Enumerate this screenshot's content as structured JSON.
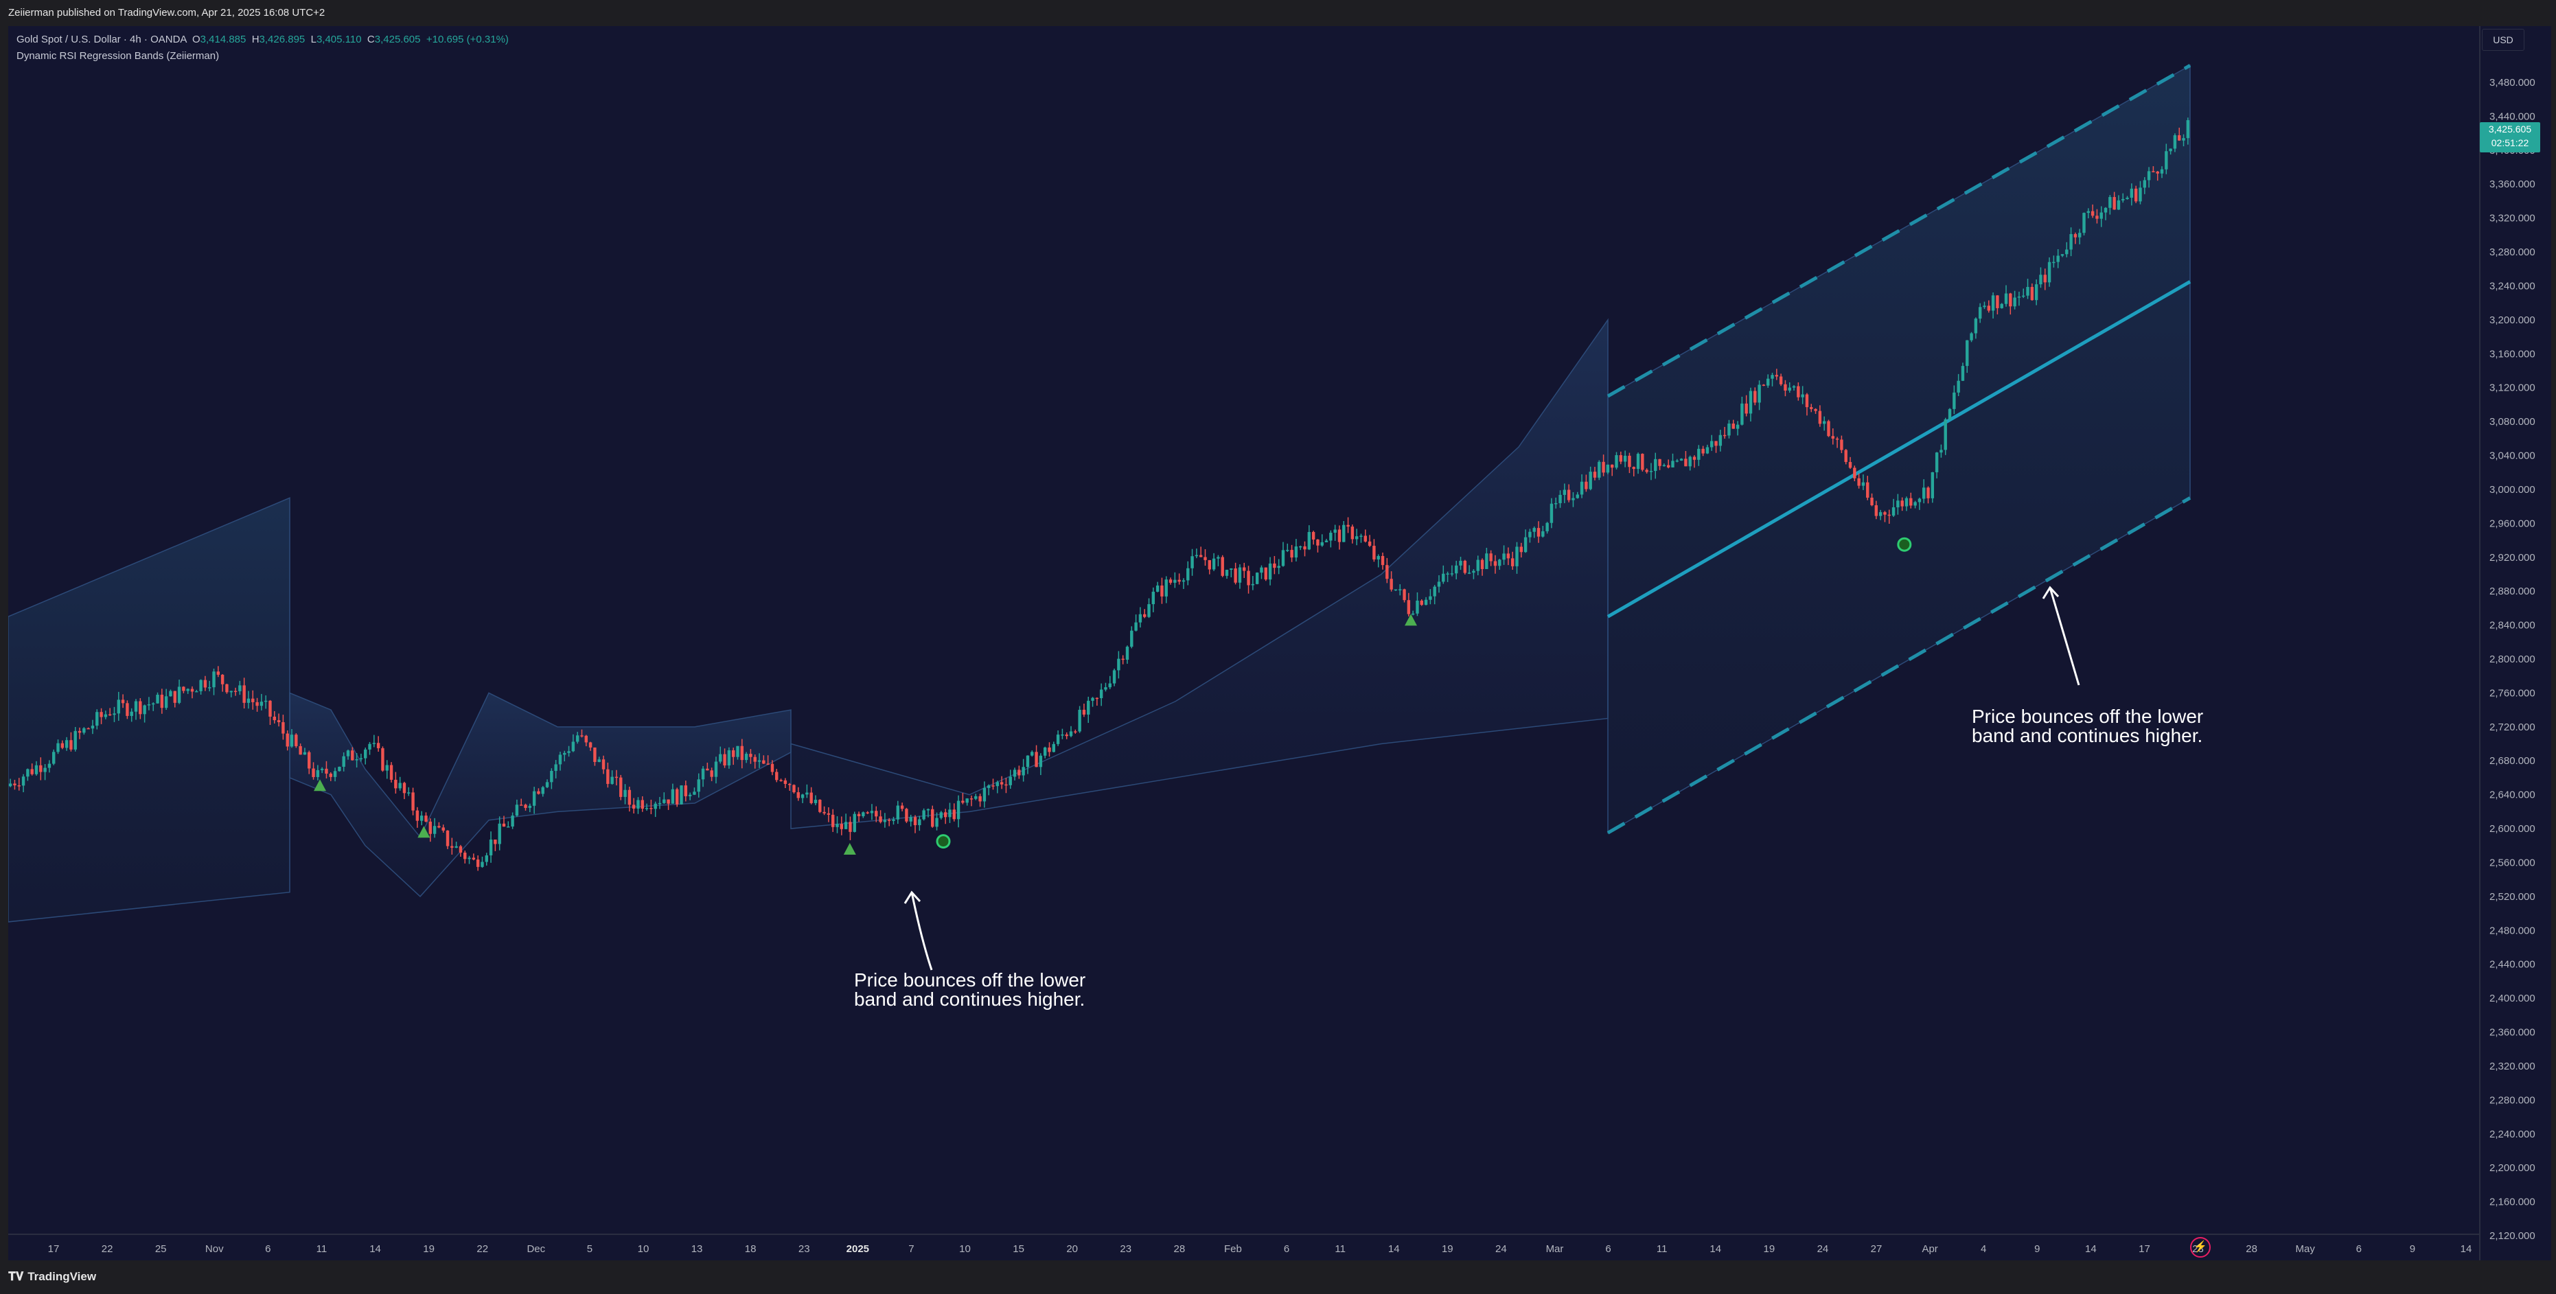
{
  "header": {
    "publish_info": "Zeiierman published on TradingView.com, Apr 21, 2025 16:08 UTC+2"
  },
  "legend": {
    "symbol": "Gold Spot / U.S. Dollar · 4h · OANDA",
    "o_label": "O",
    "o_value": "3,414.885",
    "h_label": "H",
    "h_value": "3,426.895",
    "l_label": "L",
    "l_value": "3,405.110",
    "c_label": "C",
    "c_value": "3,425.605",
    "change": "+10.695 (+0.31%)",
    "indicator": "Dynamic RSI Regression Bands (Zeiierman)"
  },
  "price_axis": {
    "currency": "USD",
    "labels": [
      "3,480.000",
      "3,440.000",
      "3,400.000",
      "3,360.000",
      "3,320.000",
      "3,280.000",
      "3,240.000",
      "3,200.000",
      "3,160.000",
      "3,120.000",
      "3,080.000",
      "3,040.000",
      "3,000.000",
      "2,960.000",
      "2,920.000",
      "2,880.000",
      "2,840.000",
      "2,800.000",
      "2,760.000",
      "2,720.000",
      "2,680.000",
      "2,640.000",
      "2,600.000",
      "2,560.000",
      "2,520.000",
      "2,480.000",
      "2,440.000",
      "2,400.000",
      "2,360.000",
      "2,320.000",
      "2,280.000",
      "2,240.000",
      "2,200.000",
      "2,160.000",
      "2,120.000"
    ],
    "current_price": "3,425.605",
    "countdown": "02:51:22"
  },
  "time_axis": {
    "labels": [
      "17",
      "22",
      "25",
      "Nov",
      "6",
      "11",
      "14",
      "19",
      "22",
      "Dec",
      "5",
      "10",
      "13",
      "18",
      "23",
      "2025",
      "7",
      "10",
      "15",
      "20",
      "23",
      "28",
      "Feb",
      "6",
      "11",
      "14",
      "19",
      "24",
      "Mar",
      "6",
      "11",
      "14",
      "19",
      "24",
      "27",
      "Apr",
      "4",
      "9",
      "14",
      "17",
      "23",
      "28",
      "May",
      "6",
      "9",
      "14"
    ],
    "bold": [
      "2025"
    ]
  },
  "annotations": [
    {
      "line1": "Price bounces off the lower",
      "line2": "band and continues higher."
    },
    {
      "line1": "Price bounces off the lower",
      "line2": "band and continues higher."
    }
  ],
  "footer": {
    "brand": "TradingView"
  },
  "colors": {
    "background": "#131530",
    "up_candle": "#26a69a",
    "down_candle": "#ef5350",
    "band_line": "#1f8fa8",
    "regression": "#1e9fbf",
    "signal": "#2ecc71"
  },
  "chart_data": {
    "type": "candlestick",
    "title": "Gold Spot / U.S. Dollar · 4h · OANDA",
    "ylim": [
      2120,
      3480
    ],
    "price_path": [
      [
        "Oct 14",
        2650
      ],
      [
        "Oct 17",
        2690
      ],
      [
        "Oct 22",
        2740
      ],
      [
        "Oct 25",
        2750
      ],
      [
        "Oct 30",
        2780
      ],
      [
        "Nov 1",
        2740
      ],
      [
        "Nov 6",
        2660
      ],
      [
        "Nov 8",
        2700
      ],
      [
        "Nov 11",
        2610
      ],
      [
        "Nov 14",
        2560
      ],
      [
        "Nov 19",
        2630
      ],
      [
        "Nov 22",
        2710
      ],
      [
        "Nov 26",
        2630
      ],
      [
        "Dec 5",
        2640
      ],
      [
        "Dec 10",
        2690
      ],
      [
        "Dec 13",
        2660
      ],
      [
        "Dec 18",
        2600
      ],
      [
        "Dec 23",
        2620
      ],
      [
        "Dec 30",
        2610
      ],
      [
        "Jan 7",
        2650
      ],
      [
        "Jan 15",
        2690
      ],
      [
        "Jan 23",
        2750
      ],
      [
        "Feb 6",
        2870
      ],
      [
        "Feb 11",
        2920
      ],
      [
        "Feb 14",
        2890
      ],
      [
        "Feb 19",
        2940
      ],
      [
        "Feb 24",
        2950
      ],
      [
        "Feb 28",
        2860
      ],
      [
        "Mar 6",
        2910
      ],
      [
        "Mar 11",
        2920
      ],
      [
        "Mar 14",
        2990
      ],
      [
        "Mar 19",
        3040
      ],
      [
        "Mar 24",
        3020
      ],
      [
        "Mar 27",
        3060
      ],
      [
        "Apr 1",
        3140
      ],
      [
        "Apr 4",
        3080
      ],
      [
        "Apr 7",
        2970
      ],
      [
        "Apr 9",
        3000
      ],
      [
        "Apr 11",
        3220
      ],
      [
        "Apr 14",
        3230
      ],
      [
        "Apr 16",
        3320
      ],
      [
        "Apr 18",
        3350
      ],
      [
        "Apr 21",
        3425.605
      ]
    ],
    "signals": [
      {
        "type": "triangle-up",
        "date": "Nov 6",
        "price": 2650
      },
      {
        "type": "triangle-up",
        "date": "Nov 11",
        "price": 2595
      },
      {
        "type": "triangle-up",
        "date": "Dec 19",
        "price": 2575
      },
      {
        "type": "dot",
        "date": "Dec 30",
        "price": 2585
      },
      {
        "type": "triangle-up",
        "date": "Feb 28",
        "price": 2845
      },
      {
        "type": "dot",
        "date": "Apr 8",
        "price": 2935
      }
    ]
  }
}
